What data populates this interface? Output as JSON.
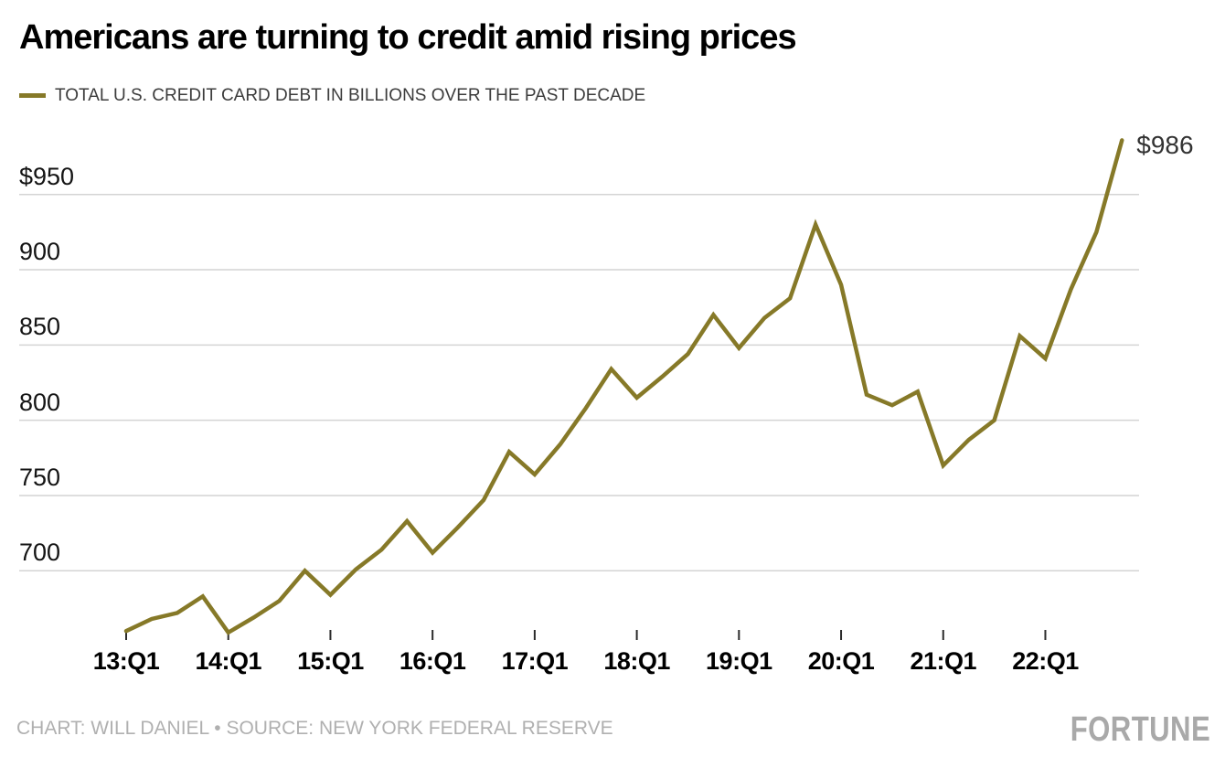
{
  "header": {
    "title": "Americans are turning to credit amid rising prices",
    "legend_label": "TOTAL U.S. CREDIT CARD DEBT IN BILLIONS OVER THE PAST DECADE"
  },
  "chart_data": {
    "type": "line",
    "title": "Americans are turning to credit amid rising prices",
    "x": [
      "13:Q1",
      "13:Q2",
      "13:Q3",
      "13:Q4",
      "14:Q1",
      "14:Q2",
      "14:Q3",
      "14:Q4",
      "15:Q1",
      "15:Q2",
      "15:Q3",
      "15:Q4",
      "16:Q1",
      "16:Q2",
      "16:Q3",
      "16:Q4",
      "17:Q1",
      "17:Q2",
      "17:Q3",
      "17:Q4",
      "18:Q1",
      "18:Q2",
      "18:Q3",
      "18:Q4",
      "19:Q1",
      "19:Q2",
      "19:Q3",
      "19:Q4",
      "20:Q1",
      "20:Q2",
      "20:Q3",
      "20:Q4",
      "21:Q1",
      "21:Q2",
      "21:Q3",
      "21:Q4",
      "22:Q1",
      "22:Q2",
      "22:Q3",
      "22:Q4"
    ],
    "series": [
      {
        "name": "TOTAL U.S. CREDIT CARD DEBT IN BILLIONS OVER THE PAST DECADE",
        "color": "#867928",
        "values": [
          660,
          668,
          672,
          683,
          659,
          669,
          680,
          700,
          684,
          701,
          714,
          733,
          712,
          729,
          747,
          779,
          764,
          784,
          808,
          834,
          815,
          829,
          844,
          870,
          848,
          868,
          881,
          930,
          890,
          817,
          810,
          819,
          770,
          787,
          800,
          856,
          841,
          887,
          925,
          986
        ]
      }
    ],
    "x_tick_labels": [
      "13:Q1",
      "14:Q1",
      "15:Q1",
      "16:Q1",
      "17:Q1",
      "18:Q1",
      "19:Q1",
      "20:Q1",
      "21:Q1",
      "22:Q1"
    ],
    "y_ticks": [
      {
        "label": "$950",
        "value": 950
      },
      {
        "label": "900",
        "value": 900
      },
      {
        "label": "850",
        "value": 850
      },
      {
        "label": "800",
        "value": 800
      },
      {
        "label": "750",
        "value": 750
      },
      {
        "label": "700",
        "value": 700
      }
    ],
    "ylim": [
      655,
      1000
    ],
    "grid": "horizontal",
    "legend_position": "top-left",
    "end_label": "$986"
  },
  "footer": {
    "credit": "CHART: WILL DANIEL • SOURCE: NEW YORK FEDERAL RESERVE",
    "logo": "FORTUNE"
  }
}
